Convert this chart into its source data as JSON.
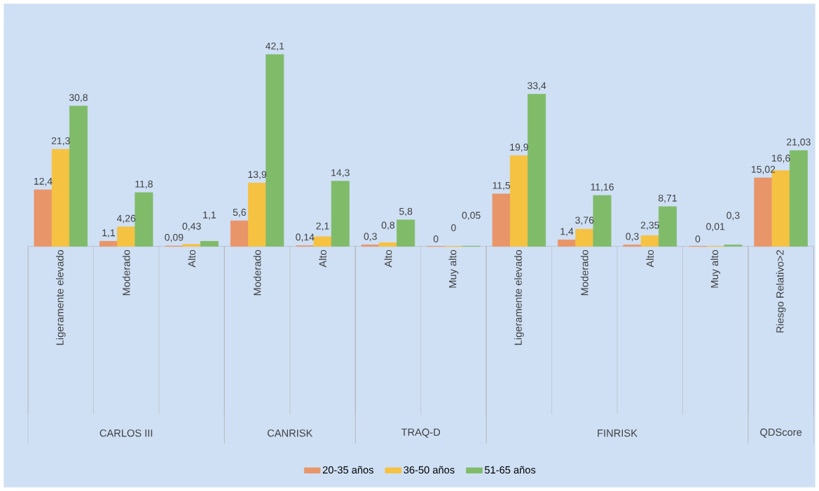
{
  "chart_data": {
    "type": "bar",
    "categories": [
      "Ligeramente  elevado",
      "Moderado",
      "Alto",
      "Moderado",
      "Alto",
      "Alto",
      "Muy alto",
      "Ligeramente  elevado",
      "Moderado",
      "Alto",
      "Muy alto",
      "Riesgo  Relativo>2"
    ],
    "series": [
      {
        "name": "20-35 años",
        "color": "#e8956a",
        "values": [
          12.4,
          1.1,
          0.09,
          5.6,
          0.14,
          0.3,
          0,
          11.5,
          1.4,
          0.3,
          0,
          15.02
        ],
        "value_labels": [
          "12,4",
          "1,1",
          "0,09",
          "5,6",
          "0,14",
          "0,3",
          "0",
          "11,5",
          "1,4",
          "0,3",
          "0",
          "15,02"
        ]
      },
      {
        "name": "36-50 años",
        "color": "#f5c242",
        "values": [
          21.3,
          4.26,
          0.43,
          13.9,
          2.1,
          0.8,
          0,
          19.9,
          3.76,
          2.35,
          0.01,
          16.6
        ],
        "value_labels": [
          "21,3",
          "4,26",
          "0,43",
          "13,9",
          "2,1",
          "0,8",
          "0",
          "19,9",
          "3,76",
          "2,35",
          "0,01",
          "16,6"
        ]
      },
      {
        "name": "51-65 años",
        "color": "#80bb6a",
        "values": [
          30.8,
          11.8,
          1.1,
          42.1,
          14.3,
          5.8,
          0.05,
          33.4,
          11.16,
          8.71,
          0.3,
          21.03
        ],
        "value_labels": [
          "30,8",
          "11,8",
          "1,1",
          "42,1",
          "14,3",
          "5,8",
          "0,05",
          "33,4",
          "11,16",
          "8,71",
          "0,3",
          "21,03"
        ]
      }
    ],
    "annotations": [
      "CARLOS III",
      "CANRISK",
      "TRAQ-D",
      "FINRISK",
      "QDScore"
    ],
    "legend": "bottom"
  }
}
